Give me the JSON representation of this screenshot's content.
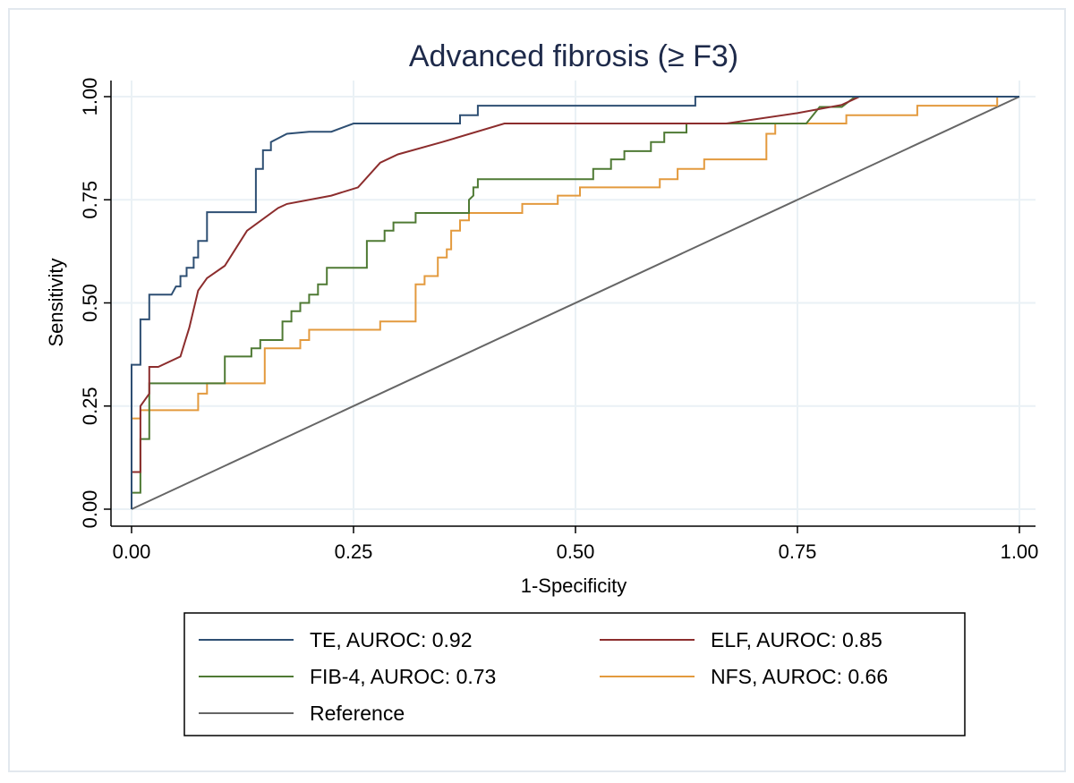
{
  "chart_data": {
    "type": "line",
    "title": "Advanced fibrosis (≥ F3)",
    "xlabel": "1-Specificity",
    "ylabel": "Sensitivity",
    "xlim": [
      0,
      1
    ],
    "ylim": [
      0,
      1
    ],
    "xticks": [
      "0.00",
      "0.25",
      "0.50",
      "0.75",
      "1.00"
    ],
    "yticks": [
      "0.00",
      "0.25",
      "0.50",
      "0.75",
      "1.00"
    ],
    "grid": true,
    "legend_position": "bottom",
    "series": [
      {
        "name": "TE, AUROC: 0.92",
        "color": "#2e4f73",
        "step": true,
        "points": [
          [
            0,
            0
          ],
          [
            0,
            0.22
          ],
          [
            0,
            0.35
          ],
          [
            0.01,
            0.35
          ],
          [
            0.01,
            0.46
          ],
          [
            0.02,
            0.46
          ],
          [
            0.02,
            0.52
          ],
          [
            0.045,
            0.52
          ],
          [
            0.05,
            0.54
          ],
          [
            0.055,
            0.54
          ],
          [
            0.055,
            0.565
          ],
          [
            0.062,
            0.565
          ],
          [
            0.062,
            0.585
          ],
          [
            0.07,
            0.585
          ],
          [
            0.07,
            0.61
          ],
          [
            0.075,
            0.61
          ],
          [
            0.075,
            0.65
          ],
          [
            0.085,
            0.65
          ],
          [
            0.085,
            0.72
          ],
          [
            0.14,
            0.72
          ],
          [
            0.14,
            0.825
          ],
          [
            0.148,
            0.825
          ],
          [
            0.148,
            0.87
          ],
          [
            0.157,
            0.87
          ],
          [
            0.157,
            0.89
          ],
          [
            0.175,
            0.91
          ],
          [
            0.2,
            0.915
          ],
          [
            0.225,
            0.915
          ],
          [
            0.25,
            0.935
          ],
          [
            0.37,
            0.935
          ],
          [
            0.37,
            0.955
          ],
          [
            0.39,
            0.955
          ],
          [
            0.39,
            0.978
          ],
          [
            0.635,
            0.978
          ],
          [
            0.635,
            1.0
          ],
          [
            1.0,
            1.0
          ]
        ]
      },
      {
        "name": "ELF, AUROC: 0.85",
        "color": "#8c2d2d",
        "step": false,
        "points": [
          [
            0,
            0
          ],
          [
            0,
            0.09
          ],
          [
            0.01,
            0.09
          ],
          [
            0.01,
            0.25
          ],
          [
            0.02,
            0.28
          ],
          [
            0.02,
            0.345
          ],
          [
            0.03,
            0.345
          ],
          [
            0.055,
            0.37
          ],
          [
            0.065,
            0.44
          ],
          [
            0.075,
            0.53
          ],
          [
            0.085,
            0.56
          ],
          [
            0.105,
            0.59
          ],
          [
            0.13,
            0.675
          ],
          [
            0.165,
            0.73
          ],
          [
            0.175,
            0.74
          ],
          [
            0.225,
            0.76
          ],
          [
            0.255,
            0.78
          ],
          [
            0.28,
            0.84
          ],
          [
            0.3,
            0.86
          ],
          [
            0.35,
            0.89
          ],
          [
            0.42,
            0.935
          ],
          [
            0.67,
            0.935
          ],
          [
            0.75,
            0.96
          ],
          [
            0.8,
            0.98
          ],
          [
            0.82,
            1.0
          ],
          [
            1.0,
            1.0
          ]
        ]
      },
      {
        "name": "FIB-4, AUROC: 0.73",
        "color": "#4f7a34",
        "step": true,
        "points": [
          [
            0,
            0
          ],
          [
            0,
            0.04
          ],
          [
            0.01,
            0.04
          ],
          [
            0.01,
            0.17
          ],
          [
            0.02,
            0.17
          ],
          [
            0.02,
            0.305
          ],
          [
            0.105,
            0.305
          ],
          [
            0.105,
            0.37
          ],
          [
            0.135,
            0.37
          ],
          [
            0.135,
            0.39
          ],
          [
            0.145,
            0.39
          ],
          [
            0.145,
            0.41
          ],
          [
            0.17,
            0.41
          ],
          [
            0.17,
            0.455
          ],
          [
            0.18,
            0.455
          ],
          [
            0.18,
            0.48
          ],
          [
            0.19,
            0.48
          ],
          [
            0.19,
            0.5
          ],
          [
            0.2,
            0.5
          ],
          [
            0.2,
            0.52
          ],
          [
            0.21,
            0.52
          ],
          [
            0.21,
            0.545
          ],
          [
            0.22,
            0.545
          ],
          [
            0.22,
            0.585
          ],
          [
            0.265,
            0.585
          ],
          [
            0.265,
            0.65
          ],
          [
            0.285,
            0.65
          ],
          [
            0.285,
            0.675
          ],
          [
            0.295,
            0.675
          ],
          [
            0.295,
            0.695
          ],
          [
            0.32,
            0.695
          ],
          [
            0.32,
            0.718
          ],
          [
            0.38,
            0.718
          ],
          [
            0.38,
            0.75
          ],
          [
            0.385,
            0.76
          ],
          [
            0.385,
            0.78
          ],
          [
            0.39,
            0.78
          ],
          [
            0.39,
            0.8
          ],
          [
            0.52,
            0.8
          ],
          [
            0.52,
            0.825
          ],
          [
            0.54,
            0.825
          ],
          [
            0.54,
            0.848
          ],
          [
            0.555,
            0.848
          ],
          [
            0.555,
            0.868
          ],
          [
            0.585,
            0.868
          ],
          [
            0.585,
            0.89
          ],
          [
            0.6,
            0.89
          ],
          [
            0.6,
            0.913
          ],
          [
            0.625,
            0.913
          ],
          [
            0.625,
            0.935
          ],
          [
            0.76,
            0.935
          ],
          [
            0.775,
            0.975
          ],
          [
            0.8,
            0.975
          ],
          [
            0.815,
            1.0
          ],
          [
            1.0,
            1.0
          ]
        ]
      },
      {
        "name": "NFS, AUROC: 0.66",
        "color": "#e39a3e",
        "step": true,
        "points": [
          [
            0,
            0
          ],
          [
            0,
            0.22
          ],
          [
            0.01,
            0.22
          ],
          [
            0.01,
            0.24
          ],
          [
            0.075,
            0.24
          ],
          [
            0.075,
            0.28
          ],
          [
            0.085,
            0.28
          ],
          [
            0.085,
            0.305
          ],
          [
            0.15,
            0.305
          ],
          [
            0.15,
            0.39
          ],
          [
            0.19,
            0.39
          ],
          [
            0.19,
            0.41
          ],
          [
            0.2,
            0.41
          ],
          [
            0.2,
            0.435
          ],
          [
            0.28,
            0.435
          ],
          [
            0.28,
            0.455
          ],
          [
            0.32,
            0.455
          ],
          [
            0.32,
            0.545
          ],
          [
            0.33,
            0.545
          ],
          [
            0.33,
            0.565
          ],
          [
            0.345,
            0.565
          ],
          [
            0.345,
            0.61
          ],
          [
            0.355,
            0.61
          ],
          [
            0.355,
            0.63
          ],
          [
            0.36,
            0.63
          ],
          [
            0.36,
            0.675
          ],
          [
            0.37,
            0.675
          ],
          [
            0.37,
            0.7
          ],
          [
            0.38,
            0.7
          ],
          [
            0.38,
            0.718
          ],
          [
            0.44,
            0.718
          ],
          [
            0.44,
            0.74
          ],
          [
            0.48,
            0.74
          ],
          [
            0.48,
            0.76
          ],
          [
            0.505,
            0.76
          ],
          [
            0.505,
            0.78
          ],
          [
            0.595,
            0.78
          ],
          [
            0.595,
            0.8
          ],
          [
            0.615,
            0.8
          ],
          [
            0.615,
            0.825
          ],
          [
            0.645,
            0.825
          ],
          [
            0.645,
            0.848
          ],
          [
            0.715,
            0.848
          ],
          [
            0.715,
            0.91
          ],
          [
            0.725,
            0.91
          ],
          [
            0.725,
            0.935
          ],
          [
            0.805,
            0.935
          ],
          [
            0.805,
            0.955
          ],
          [
            0.885,
            0.955
          ],
          [
            0.885,
            0.978
          ],
          [
            0.975,
            0.978
          ],
          [
            0.975,
            1.0
          ],
          [
            1.0,
            1.0
          ]
        ]
      },
      {
        "name": "Reference",
        "color": "#666666",
        "step": false,
        "points": [
          [
            0,
            0
          ],
          [
            1,
            1
          ]
        ]
      }
    ]
  }
}
